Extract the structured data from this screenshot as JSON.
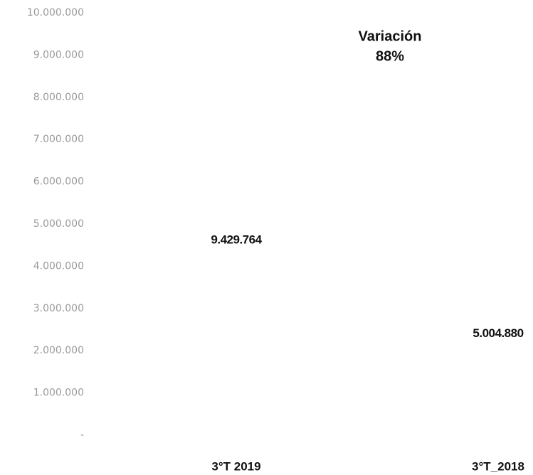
{
  "chart_data": {
    "type": "bar",
    "categories": [
      "3°T 2019",
      "3°T_2018"
    ],
    "values": [
      9429764,
      5004880
    ],
    "value_labels": [
      "9.429.764",
      "5.004.880"
    ],
    "color": "#ffffff",
    "annotation": [
      "Variación",
      "88%"
    ],
    "ylim": [
      0,
      10000000
    ],
    "yticks": [
      {
        "value": 0,
        "label": "-"
      },
      {
        "value": 1000000,
        "label": "1.000.000"
      },
      {
        "value": 2000000,
        "label": "2.000.000"
      },
      {
        "value": 3000000,
        "label": "3.000.000"
      },
      {
        "value": 4000000,
        "label": "4.000.000"
      },
      {
        "value": 5000000,
        "label": "5.000.000"
      },
      {
        "value": 6000000,
        "label": "6.000.000"
      },
      {
        "value": 7000000,
        "label": "7.000.000"
      },
      {
        "value": 8000000,
        "label": "8.000.000"
      },
      {
        "value": 9000000,
        "label": "9.000.000"
      },
      {
        "value": 10000000,
        "label": "10.000.000"
      }
    ],
    "grid": false
  }
}
